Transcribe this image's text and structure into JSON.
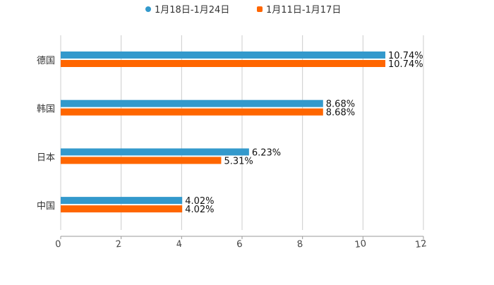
{
  "chart_data": {
    "type": "bar",
    "orientation": "horizontal",
    "title": "",
    "categories": [
      "德国",
      "韩国",
      "日本",
      "中国"
    ],
    "series": [
      {
        "name": "1月18日-1月24日",
        "color": "#3399cc",
        "values": [
          10.74,
          8.68,
          6.23,
          4.02
        ],
        "labels": [
          "10.74%",
          "8.68%",
          "6.23%",
          "4.02%"
        ]
      },
      {
        "name": "1月11日-1月17日",
        "color": "#ff6600",
        "values": [
          10.74,
          8.68,
          5.31,
          4.02
        ],
        "labels": [
          "10.74%",
          "8.68%",
          "5.31%",
          "4.02%"
        ]
      }
    ],
    "xlim": [
      0,
      12
    ],
    "xticks": [
      "0",
      "2",
      "4",
      "6",
      "8",
      "10",
      "12"
    ],
    "xlabel": "",
    "ylabel": "",
    "grid": true,
    "legend": "top-center"
  }
}
